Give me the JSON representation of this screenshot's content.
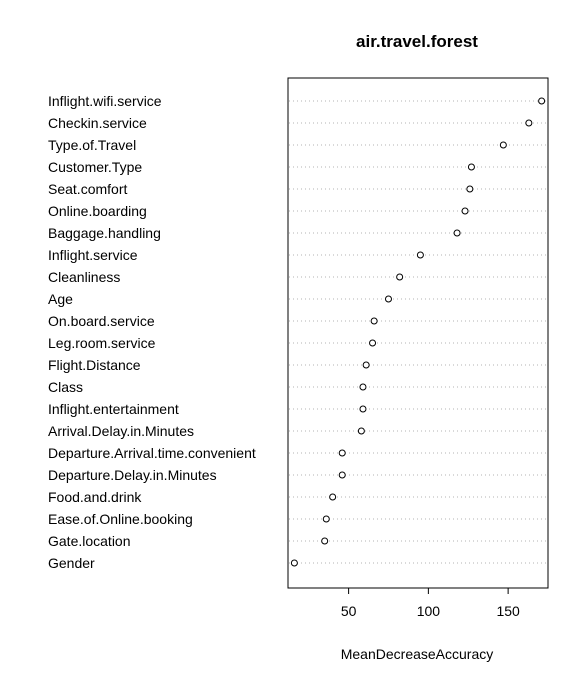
{
  "chart_data": {
    "type": "dotchart",
    "title": "air.travel.forest",
    "xlabel": "MeanDecreaseAccuracy",
    "ylabel": "",
    "xlim": [
      12,
      175
    ],
    "xticks": [
      50,
      100,
      150
    ],
    "grid": "dotted horizontal guide lines",
    "categories": [
      "Inflight.wifi.service",
      "Checkin.service",
      "Type.of.Travel",
      "Customer.Type",
      "Seat.comfort",
      "Online.boarding",
      "Baggage.handling",
      "Inflight.service",
      "Cleanliness",
      "Age",
      "On.board.service",
      "Leg.room.service",
      "Flight.Distance",
      "Class",
      "Inflight.entertainment",
      "Arrival.Delay.in.Minutes",
      "Departure.Arrival.time.convenient",
      "Departure.Delay.in.Minutes",
      "Food.and.drink",
      "Ease.of.Online.booking",
      "Gate.location",
      "Gender"
    ],
    "values": [
      171,
      163,
      147,
      127,
      126,
      123,
      118,
      95,
      82,
      75,
      66,
      65,
      61,
      59,
      59,
      58,
      46,
      46,
      40,
      36,
      35,
      16
    ]
  }
}
